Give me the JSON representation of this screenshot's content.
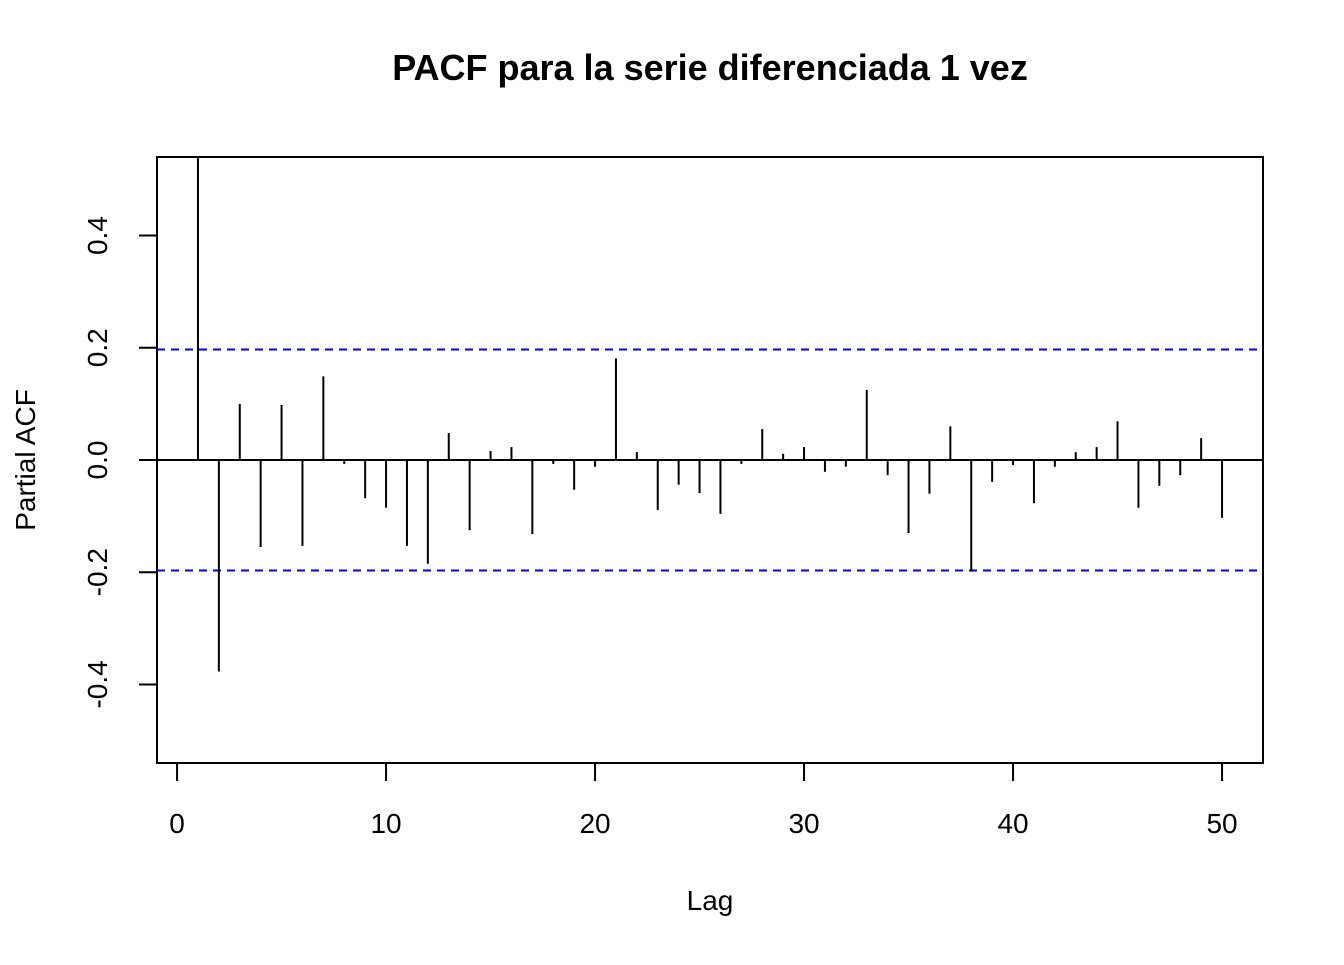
{
  "chart_data": {
    "type": "pacf",
    "title": "PACF para la serie diferenciada 1 vez",
    "x_label": "Lag",
    "y_label": "Partial ACF",
    "x": [
      1,
      2,
      3,
      4,
      5,
      6,
      7,
      8,
      9,
      10,
      11,
      12,
      13,
      14,
      15,
      16,
      17,
      18,
      19,
      20,
      21,
      22,
      23,
      24,
      25,
      26,
      27,
      28,
      29,
      30,
      31,
      32,
      33,
      34,
      35,
      36,
      37,
      38,
      39,
      40,
      41,
      42,
      43,
      44,
      45,
      46,
      47,
      48,
      49,
      50
    ],
    "values": [
      0.54,
      -0.377,
      0.1,
      -0.155,
      0.098,
      -0.153,
      0.149,
      -0.007,
      -0.068,
      -0.085,
      -0.153,
      -0.185,
      0.048,
      -0.125,
      0.016,
      0.023,
      -0.132,
      -0.007,
      -0.053,
      -0.012,
      0.181,
      0.014,
      -0.089,
      -0.044,
      -0.059,
      -0.096,
      -0.007,
      0.055,
      0.011,
      0.023,
      -0.021,
      -0.012,
      0.125,
      -0.027,
      -0.13,
      -0.06,
      0.06,
      -0.199,
      -0.039,
      -0.009,
      -0.077,
      -0.012,
      0.014,
      0.023,
      0.069,
      -0.085,
      -0.046,
      -0.027,
      0.039,
      -0.103
    ],
    "color": "#000000",
    "ci": 0.197,
    "ci_color": "#0000ee",
    "xlim": [
      -0.96,
      51.96
    ],
    "ylim": [
      -0.54,
      0.54
    ],
    "xticks": [
      0,
      10,
      20,
      30,
      40,
      50
    ],
    "yticks": [
      -0.4,
      -0.2,
      {
        "value": 0,
        "label": "0.0"
      },
      0.2,
      0.4
    ]
  }
}
